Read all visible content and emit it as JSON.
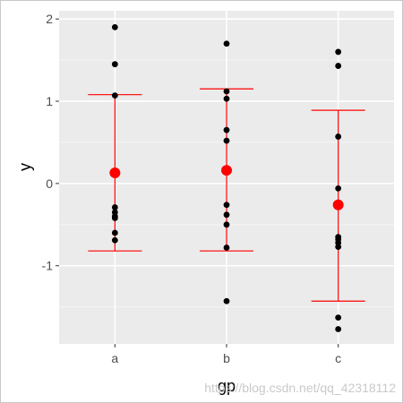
{
  "watermark": "https://blog.csdn.net/qq_42318112",
  "chart_data": {
    "type": "scatter",
    "title": "",
    "xlabel": "gp",
    "ylabel": "y",
    "categories": [
      "a",
      "b",
      "c"
    ],
    "ylim": [
      -1.95,
      2.1
    ],
    "yticks": [
      -1,
      0,
      1,
      2
    ],
    "yticklabels": [
      "-1",
      "0",
      "1",
      "2"
    ],
    "grid": true,
    "legend": "none",
    "colors": {
      "panel": "#ebebeb",
      "grid_major": "#ffffff",
      "grid_minor": "#f5f5f5",
      "points": "#000000",
      "summary": "#ff0000"
    },
    "points": [
      {
        "category": "a",
        "values": [
          1.9,
          1.45,
          1.07,
          -0.29,
          -0.35,
          -0.4,
          -0.42,
          -0.6,
          -0.69
        ]
      },
      {
        "category": "b",
        "values": [
          1.7,
          1.12,
          1.03,
          0.65,
          0.52,
          -0.26,
          -0.38,
          -0.5,
          -0.78,
          -1.43
        ]
      },
      {
        "category": "c",
        "values": [
          1.6,
          1.43,
          0.57,
          -0.06,
          -0.65,
          -0.68,
          -0.72,
          -0.77,
          -1.63,
          -1.77
        ]
      }
    ],
    "summary": [
      {
        "category": "a",
        "mean": 0.13,
        "lower": -0.82,
        "upper": 1.08
      },
      {
        "category": "b",
        "mean": 0.16,
        "lower": -0.82,
        "upper": 1.15
      },
      {
        "category": "c",
        "mean": -0.26,
        "lower": -1.43,
        "upper": 0.89
      }
    ]
  }
}
